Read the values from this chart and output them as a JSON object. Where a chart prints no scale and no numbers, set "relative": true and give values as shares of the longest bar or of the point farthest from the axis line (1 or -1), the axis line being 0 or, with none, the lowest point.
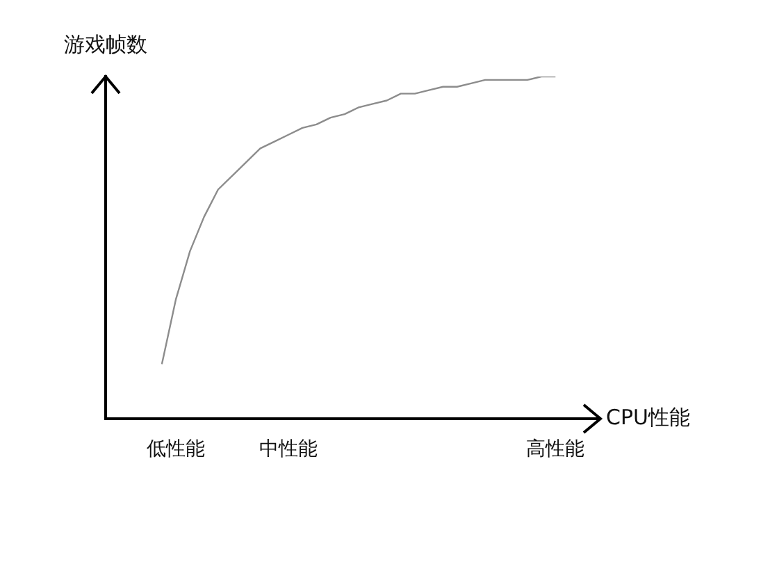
{
  "chart_data": {
    "type": "line",
    "relative": true,
    "xlabel": "CPU性能",
    "ylabel": "游戏帧数",
    "categories": [
      null,
      null,
      null,
      null,
      null,
      "低性能",
      null,
      null,
      null,
      null,
      null,
      null,
      null,
      "中性能",
      null,
      null,
      null,
      null,
      null,
      null,
      null,
      null,
      null,
      null,
      null,
      null,
      null,
      null,
      null,
      null,
      null,
      null,
      "高性能",
      null,
      null,
      null
    ],
    "series": [
      {
        "color": "#8c8c8c",
        "values": [
          null,
          null,
          null,
          null,
          0.16,
          0.35,
          0.49,
          0.59,
          0.67,
          0.71,
          0.75,
          0.79,
          0.81,
          0.83,
          0.85,
          0.86,
          0.88,
          0.89,
          0.91,
          0.92,
          0.93,
          0.95,
          0.95,
          0.96,
          0.97,
          0.97,
          0.98,
          0.99,
          0.99,
          0.99,
          0.99,
          1,
          1,
          null,
          null,
          null
        ]
      }
    ],
    "grid": false,
    "legend": false,
    "marker": "none",
    "line_style": "solid"
  }
}
